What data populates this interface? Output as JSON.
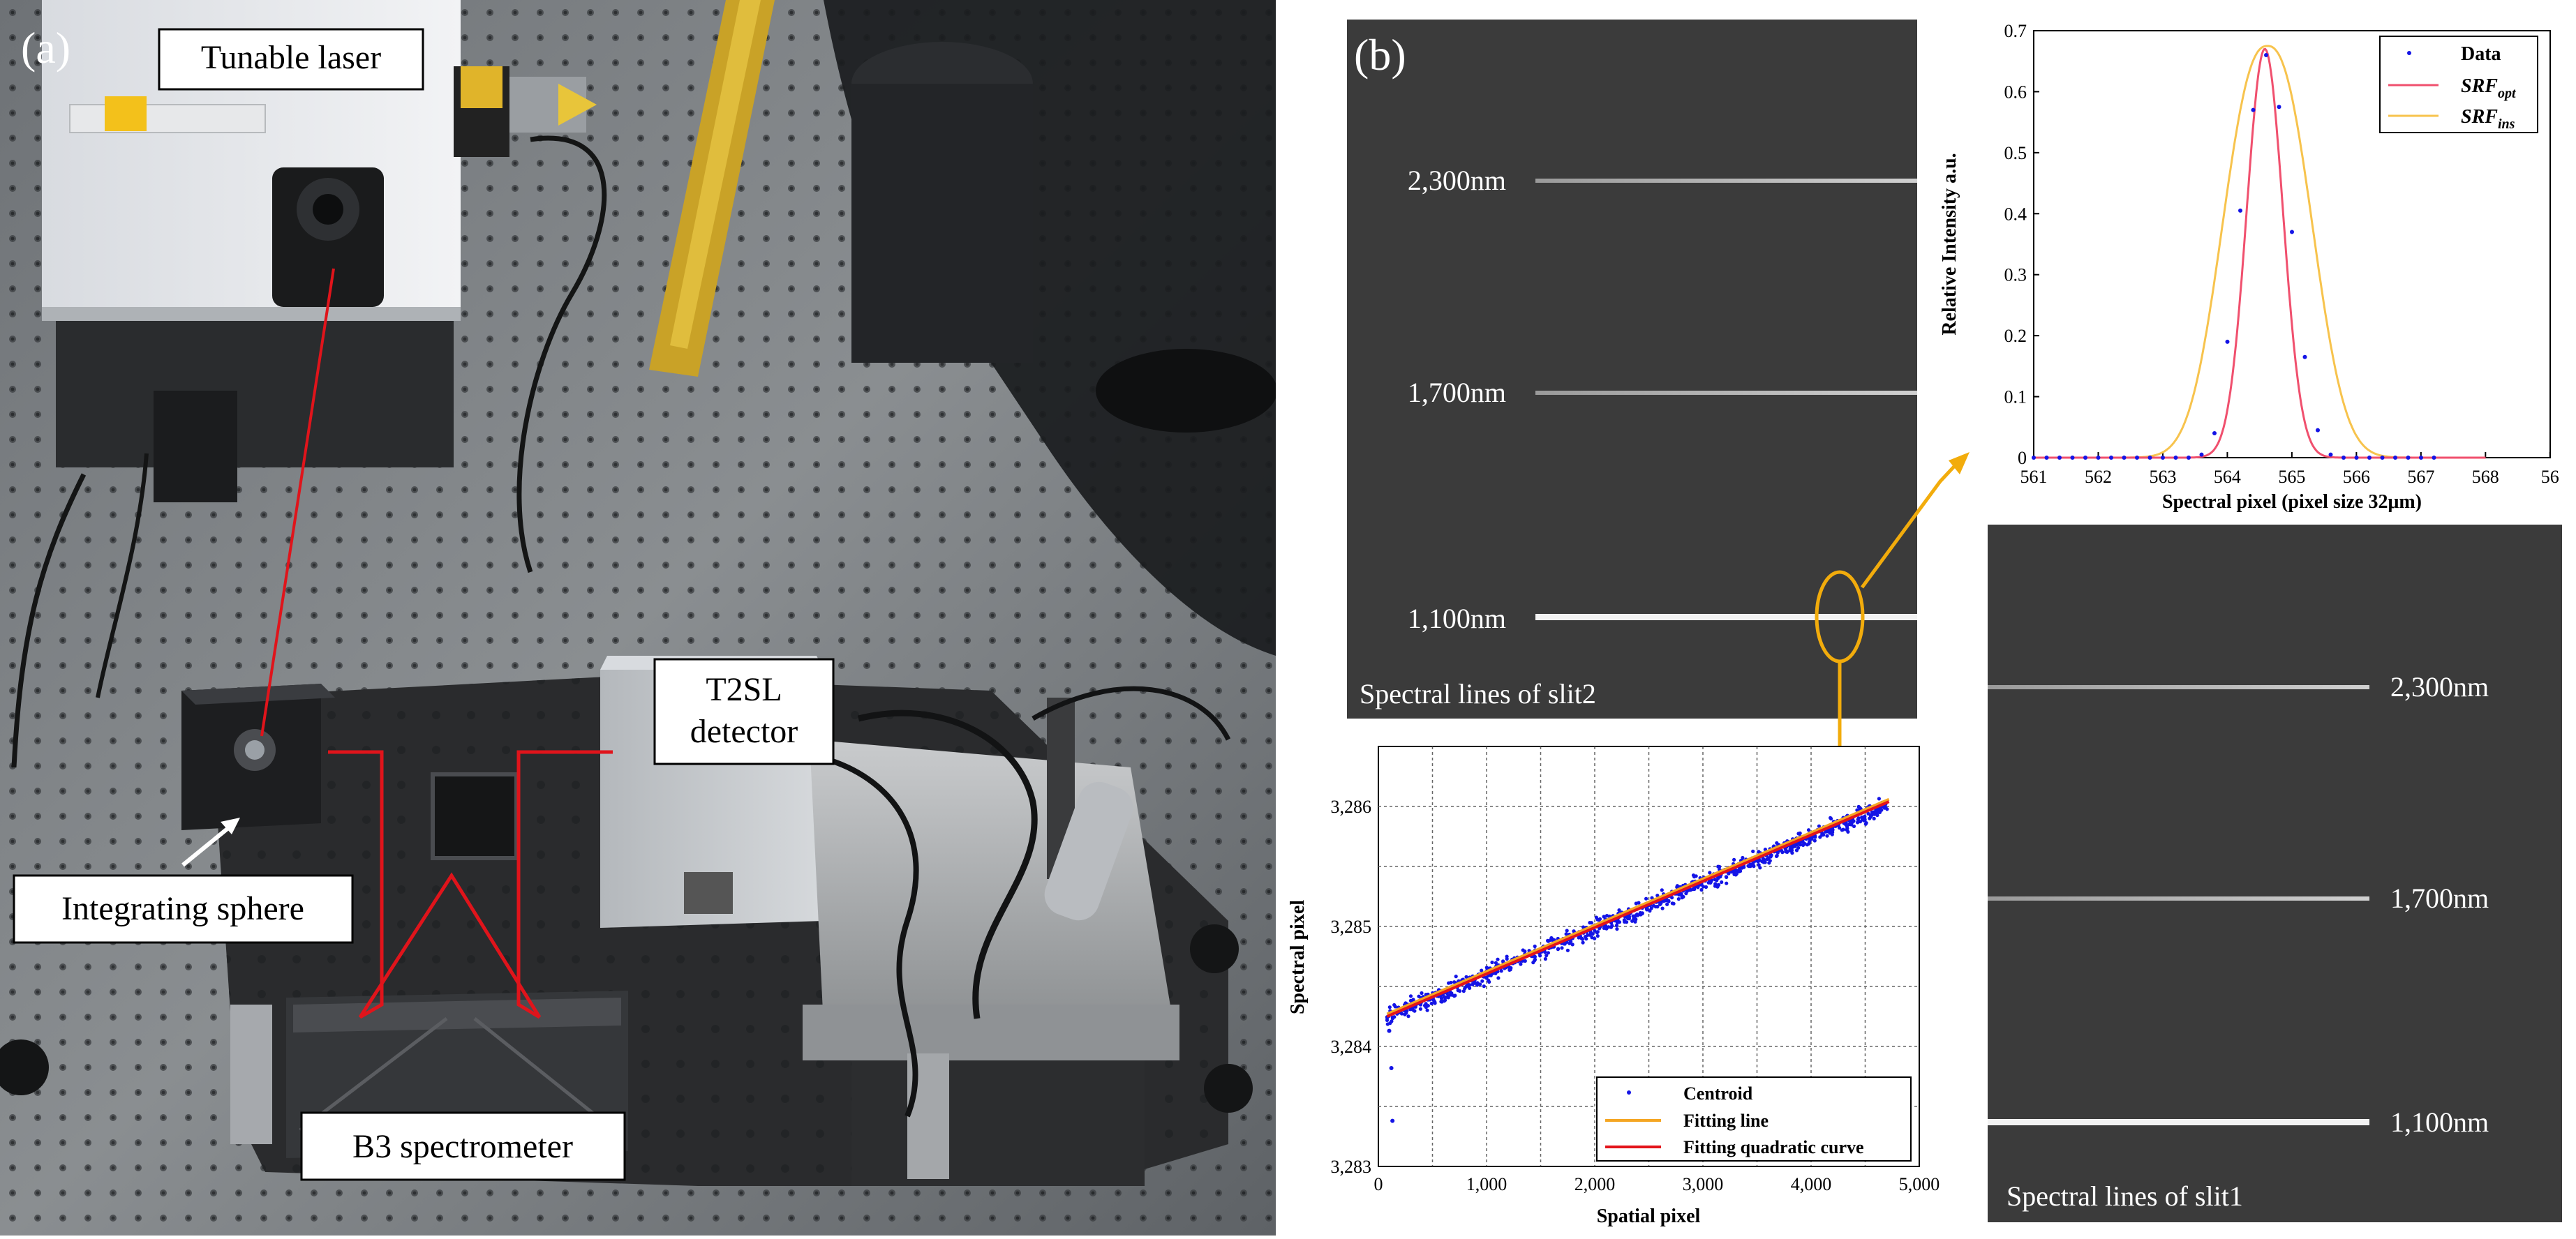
{
  "panel_a": {
    "label": "(a)",
    "callouts": {
      "laser": "Tunable laser",
      "detector_line1": "T2SL",
      "detector_line2": "detector",
      "sphere": "Integrating sphere",
      "spectrometer": "B3 spectrometer"
    }
  },
  "panel_b": {
    "label": "(b)",
    "slit2_image": {
      "caption": "Spectral lines of slit2",
      "lines": [
        "2,300nm",
        "1,700nm",
        "1,100nm"
      ]
    },
    "slit1_image": {
      "caption": "Spectral lines of slit1",
      "lines": [
        "2,300nm",
        "1,700nm",
        "1,100nm"
      ]
    }
  },
  "colors": {
    "laser_path": "#e0141b",
    "callout_arrow": "#f2ac0c",
    "centroid": "#1414e6",
    "fit_line": "#f5a623",
    "fit_quadratic": "#e3141b",
    "srf_opt": "#f0506e",
    "srf_ins": "#f7c34d"
  },
  "chart_data": [
    {
      "type": "line",
      "xlabel": "Spectral pixel (pixel size 32μm)",
      "ylabel": "Relative Intensity  a.u.",
      "xlim": [
        561,
        568
      ],
      "ylim": [
        0,
        0.7
      ],
      "x_ticks": [
        "561",
        "562",
        "563",
        "564",
        "565",
        "566",
        "567",
        "568",
        "56"
      ],
      "y_ticks": [
        "0",
        "0.1",
        "0.2",
        "0.3",
        "0.4",
        "0.5",
        "0.6",
        "0.7"
      ],
      "grid": false,
      "legend_position": "top-right",
      "legend": [
        {
          "label": "Data"
        },
        {
          "label_main": "SRF",
          "label_sub": "opt"
        },
        {
          "label_main": "SRF",
          "label_sub": "ins"
        }
      ],
      "series": [
        {
          "name": "Data",
          "kind": "scatter",
          "x": [
            561.0,
            561.2,
            561.4,
            561.6,
            561.8,
            562.0,
            562.2,
            562.4,
            562.6,
            562.8,
            563.0,
            563.2,
            563.4,
            563.6,
            563.8,
            564.0,
            564.2,
            564.4,
            564.6,
            564.8,
            565.0,
            565.2,
            565.4,
            565.6,
            565.8,
            566.0,
            566.2,
            566.4,
            566.6,
            566.8,
            567.0,
            567.2
          ],
          "y": [
            0,
            0,
            0,
            0,
            0,
            0,
            0,
            0,
            0,
            0,
            0,
            0,
            0,
            0.005,
            0.04,
            0.19,
            0.405,
            0.57,
            0.66,
            0.575,
            0.37,
            0.165,
            0.045,
            0.005,
            0,
            0,
            0,
            0,
            0,
            0,
            0,
            0
          ]
        },
        {
          "name": "SRF_opt",
          "kind": "gaussian",
          "center": 564.58,
          "sigma": 0.28,
          "amplitude": 0.67
        },
        {
          "name": "SRF_ins",
          "kind": "supergaussian",
          "center": 564.62,
          "width": 0.88,
          "order": 2.4,
          "amplitude": 0.675
        }
      ]
    },
    {
      "type": "scatter",
      "xlabel": "Spatial pixel",
      "ylabel": "Spectral pixel",
      "xlim": [
        0,
        5000
      ],
      "ylim": [
        3283,
        3286.5
      ],
      "x_ticks": [
        "0",
        "1,000",
        "2,000",
        "3,000",
        "4,000",
        "5,000"
      ],
      "y_ticks": [
        "3,283",
        "3,284",
        "3,285",
        "3,286"
      ],
      "grid": true,
      "legend_position": "bottom-right",
      "legend": [
        "Centroid",
        "Fitting line",
        "Fitting quadratic curve"
      ],
      "series": [
        {
          "name": "Centroid",
          "kind": "scatter_band",
          "x_range": [
            80,
            4720
          ],
          "y_at_start": 3284.25,
          "y_at_end": 3286.02,
          "spread": 0.07,
          "outliers": [
            [
              100,
              3284.13
            ],
            [
              120,
              3283.82
            ],
            [
              130,
              3283.38
            ]
          ]
        },
        {
          "name": "Fitting line",
          "kind": "line",
          "x": [
            80,
            4720
          ],
          "y": [
            3284.27,
            3286.06
          ]
        },
        {
          "name": "Fitting quadratic curve",
          "kind": "line",
          "x": [
            80,
            4720
          ],
          "y": [
            3284.25,
            3286.04
          ]
        }
      ]
    }
  ]
}
